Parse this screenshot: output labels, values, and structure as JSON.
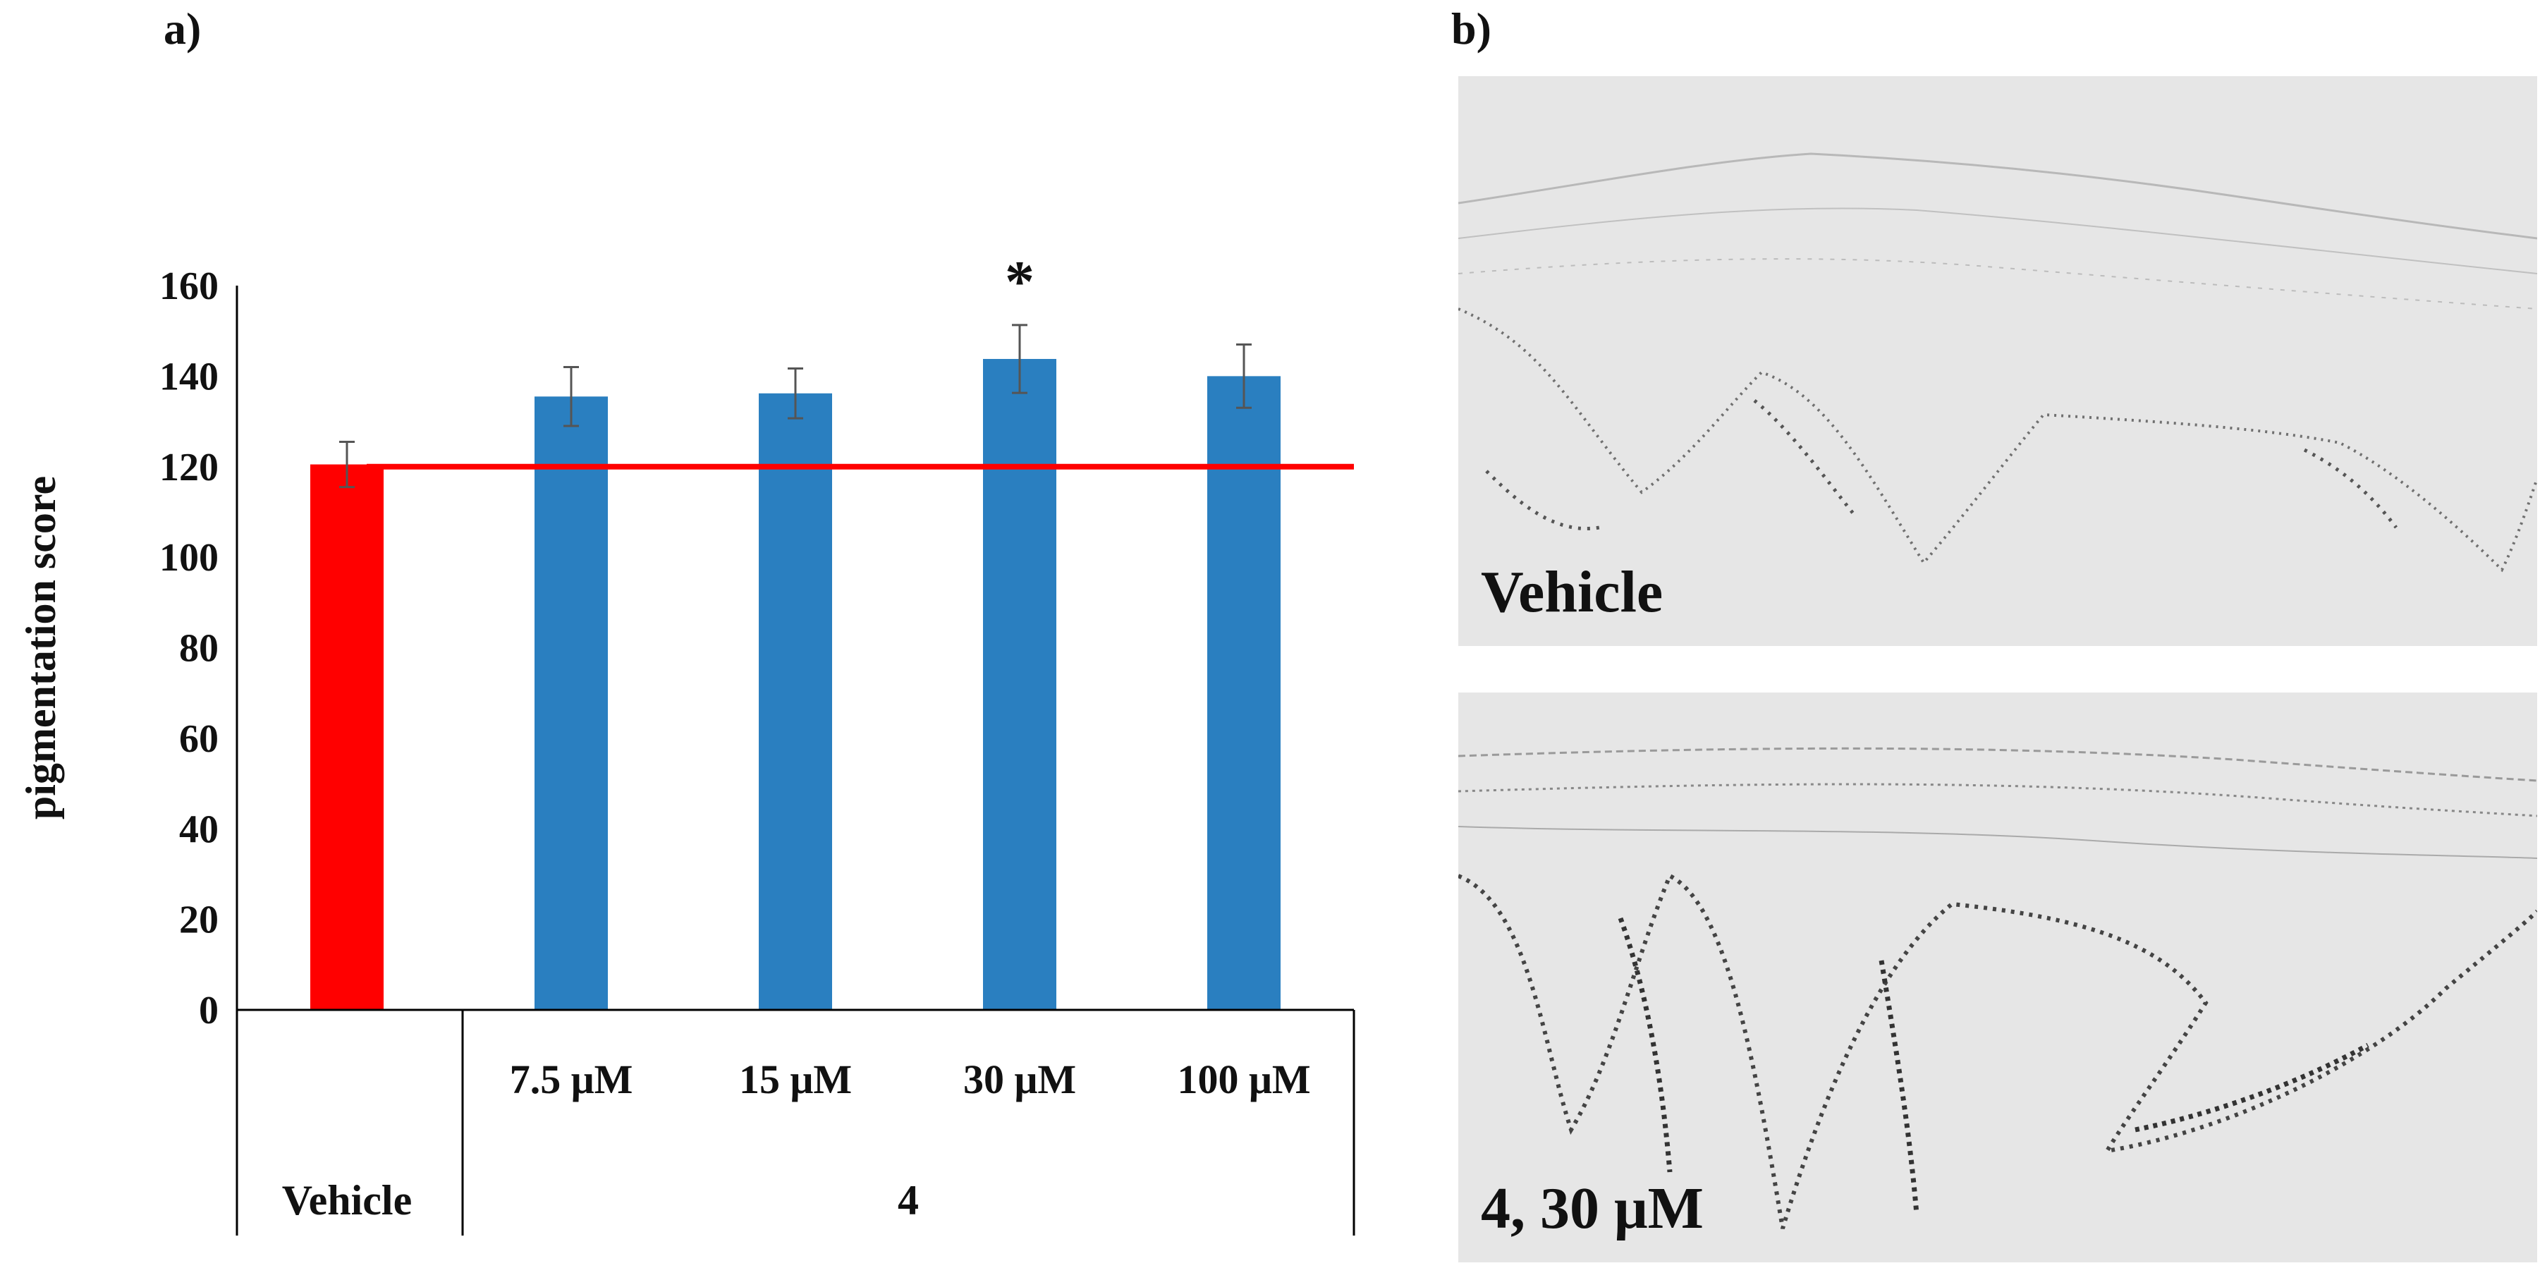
{
  "panel_a_label": "a)",
  "panel_b_label": "b)",
  "chart_data": {
    "type": "bar",
    "categories": [
      "Vehicle",
      "7.5 μM",
      "15 μM",
      "30 μM",
      "100 μM"
    ],
    "group_labels": [
      "Vehicle",
      "4"
    ],
    "values": [
      120.5,
      135.5,
      136.2,
      143.8,
      140.0
    ],
    "errors": [
      5.0,
      6.5,
      5.5,
      7.5,
      7.0
    ],
    "bar_colors": [
      "#ff0000",
      "#2a7fc0",
      "#2a7fc0",
      "#2a7fc0",
      "#2a7fc0"
    ],
    "significance": [
      "",
      "",
      "",
      "*",
      ""
    ],
    "reference_line": {
      "value": 120,
      "color": "#ff0000"
    },
    "ylabel": "pigmentation score",
    "xlabel": "",
    "ylim": [
      0,
      160
    ],
    "yticks": [
      0,
      20,
      40,
      60,
      80,
      100,
      120,
      140,
      160
    ],
    "grid": false
  },
  "images": [
    {
      "caption": "Vehicle"
    },
    {
      "caption": "4, 30 μM"
    }
  ]
}
